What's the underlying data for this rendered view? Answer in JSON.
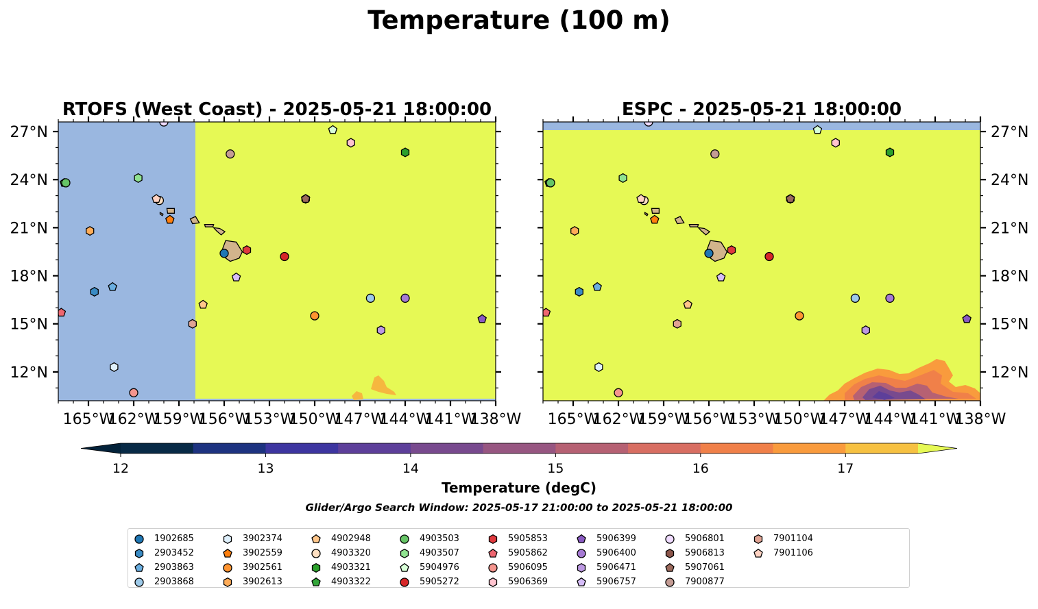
{
  "figure": {
    "suptitle": "Temperature (100 m)",
    "colorbar_label": "Temperature (degC)",
    "search_window": "Glider/Argo Search Window: 2025-05-17 21:00:00 to 2025-05-21 18:00:00",
    "colors": {
      "land": "#d2b48c",
      "nodata": "#9ab7e0",
      "high": "#e6f955"
    }
  },
  "chart_data": [
    {
      "type": "heatmap",
      "title": "RTOFS (West Coast) - 2025-05-21 18:00:00",
      "x_ticks": [
        "165°W",
        "162°W",
        "159°W",
        "156°W",
        "153°W",
        "150°W",
        "147°W",
        "144°W",
        "141°W",
        "138°W"
      ],
      "y_ticks": [
        "27°N",
        "24°N",
        "21°N",
        "18°N",
        "15°N",
        "12°N"
      ],
      "xlim": [
        -167,
        -138
      ],
      "ylim": [
        10.2,
        27.6
      ],
      "y_tick_side": "left",
      "colormap_extend": "both"
    },
    {
      "type": "heatmap",
      "title": "ESPC - 2025-05-21 18:00:00",
      "x_ticks": [
        "165°W",
        "162°W",
        "159°W",
        "156°W",
        "153°W",
        "150°W",
        "147°W",
        "144°W",
        "141°W",
        "138°W"
      ],
      "y_ticks": [
        "27°N",
        "24°N",
        "21°N",
        "18°N",
        "15°N",
        "12°N"
      ],
      "xlim": [
        -167,
        -138
      ],
      "ylim": [
        10.2,
        27.6
      ],
      "y_tick_side": "right",
      "colormap_extend": "both"
    }
  ],
  "colorbar": {
    "ticks": [
      12,
      13,
      14,
      15,
      16,
      17
    ],
    "range": [
      11.75,
      17.5
    ],
    "bins": [
      {
        "from": 11.75,
        "to": 12.0,
        "color": "#03223a"
      },
      {
        "from": 12.0,
        "to": 12.5,
        "color": "#082a46"
      },
      {
        "from": 12.5,
        "to": 13.0,
        "color": "#1d3380"
      },
      {
        "from": 13.0,
        "to": 13.5,
        "color": "#3d35a0"
      },
      {
        "from": 13.5,
        "to": 14.0,
        "color": "#5d3f9a"
      },
      {
        "from": 14.0,
        "to": 14.5,
        "color": "#784a8e"
      },
      {
        "from": 14.5,
        "to": 15.0,
        "color": "#975681"
      },
      {
        "from": 15.0,
        "to": 15.5,
        "color": "#b66173"
      },
      {
        "from": 15.5,
        "to": 16.0,
        "color": "#d86e62"
      },
      {
        "from": 16.0,
        "to": 16.5,
        "color": "#f08049"
      },
      {
        "from": 16.5,
        "to": 17.0,
        "color": "#f99b3d"
      },
      {
        "from": 17.0,
        "to": 17.5,
        "color": "#f6c142"
      },
      {
        "from": 17.5,
        "to": 17.75,
        "color": "#e6f955"
      }
    ]
  },
  "floats": [
    {
      "id": "1902685",
      "marker": "circle",
      "color": "#1f77b4",
      "lon": -156.0,
      "lat": 19.4
    },
    {
      "id": "2903452",
      "marker": "hexagon",
      "color": "#3a8bc4",
      "lon": -164.6,
      "lat": 17.0
    },
    {
      "id": "2903863",
      "marker": "pentagon",
      "color": "#6aaee0",
      "lon": -163.4,
      "lat": 17.3
    },
    {
      "id": "2903868",
      "marker": "circle",
      "color": "#9ecae9",
      "lon": -146.3,
      "lat": 16.6
    },
    {
      "id": "3902374",
      "marker": "hexagon",
      "color": "#dff0fc",
      "lon": -163.3,
      "lat": 12.3
    },
    {
      "id": "3902559",
      "marker": "pentagon",
      "color": "#ff7f0e",
      "lon": -159.6,
      "lat": 21.5
    },
    {
      "id": "3902561",
      "marker": "circle",
      "color": "#ff9430",
      "lon": -150.0,
      "lat": 15.5
    },
    {
      "id": "3902613",
      "marker": "hexagon",
      "color": "#ffac58",
      "lon": -164.9,
      "lat": 20.8
    },
    {
      "id": "4902948",
      "marker": "pentagon",
      "color": "#ffc68a",
      "lon": -157.4,
      "lat": 16.2
    },
    {
      "id": "4903320",
      "marker": "circle",
      "color": "#ffe0c2",
      "lon": -160.3,
      "lat": 22.7
    },
    {
      "id": "4903321",
      "marker": "hexagon",
      "color": "#2ca02c",
      "lon": -144.0,
      "lat": 25.7
    },
    {
      "id": "4903322",
      "marker": "pentagon",
      "color": "#33a63a",
      "lon": -166.6,
      "lat": 23.8
    },
    {
      "id": "4903503",
      "marker": "circle",
      "color": "#66c466",
      "lon": -166.5,
      "lat": 23.8
    },
    {
      "id": "4903507",
      "marker": "hexagon",
      "color": "#90e290",
      "lon": -161.7,
      "lat": 24.1
    },
    {
      "id": "5904976",
      "marker": "pentagon",
      "color": "#d8ffd8",
      "lon": -148.8,
      "lat": 27.1
    },
    {
      "id": "5905272",
      "marker": "circle",
      "color": "#d62728",
      "lon": -152.0,
      "lat": 19.2
    },
    {
      "id": "5905853",
      "marker": "hexagon",
      "color": "#e0393e",
      "lon": -154.5,
      "lat": 19.6
    },
    {
      "id": "5905862",
      "marker": "pentagon",
      "color": "#ee6670",
      "lon": -166.8,
      "lat": 15.7
    },
    {
      "id": "5906095",
      "marker": "circle",
      "color": "#f5958e",
      "lon": -162.0,
      "lat": 10.7
    },
    {
      "id": "5906369",
      "marker": "hexagon",
      "color": "#ffc4cf",
      "lon": -147.6,
      "lat": 26.3
    },
    {
      "id": "5906399",
      "marker": "pentagon",
      "color": "#8a5ac2",
      "lon": -138.9,
      "lat": 15.3
    },
    {
      "id": "5906400",
      "marker": "circle",
      "color": "#a67ad4",
      "lon": -144.0,
      "lat": 16.6
    },
    {
      "id": "5906471",
      "marker": "hexagon",
      "color": "#bd99e3",
      "lon": -145.6,
      "lat": 14.6
    },
    {
      "id": "5906757",
      "marker": "pentagon",
      "color": "#d6bdf8",
      "lon": -155.2,
      "lat": 17.9
    },
    {
      "id": "5906801",
      "marker": "circle",
      "color": "#f0dcff",
      "lon": -160.0,
      "lat": 27.6
    },
    {
      "id": "5906813",
      "marker": "hexagon",
      "color": "#8c564b",
      "lon": -150.6,
      "lat": 22.8
    },
    {
      "id": "5907061",
      "marker": "pentagon",
      "color": "#9c6a5d",
      "lon": -150.6,
      "lat": 22.8
    },
    {
      "id": "7900877",
      "marker": "circle",
      "color": "#c49c94",
      "lon": -155.6,
      "lat": 25.6
    },
    {
      "id": "7901104",
      "marker": "hexagon",
      "color": "#e0a393",
      "lon": -158.1,
      "lat": 15.0
    },
    {
      "id": "7901106",
      "marker": "pentagon",
      "color": "#ffd2c2",
      "lon": -160.5,
      "lat": 22.8
    }
  ]
}
